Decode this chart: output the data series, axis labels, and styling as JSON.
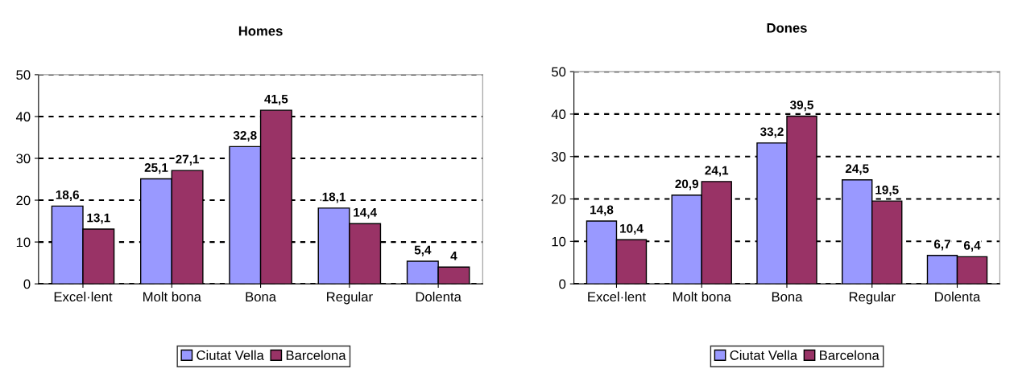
{
  "chart_data": [
    {
      "type": "bar",
      "title": "Homes",
      "categories": [
        "Excel·lent",
        "Molt bona",
        "Bona",
        "Regular",
        "Dolenta"
      ],
      "ylim": [
        0,
        50
      ],
      "yticks": [
        0,
        10,
        20,
        30,
        40,
        50
      ],
      "grid": "y",
      "legend": "bottom",
      "series": [
        {
          "name": "Ciutat Vella",
          "color": "#9999ff",
          "values": [
            18.6,
            25.1,
            32.8,
            18.1,
            5.4
          ],
          "value_labels": [
            "18,6",
            "25,1",
            "32,8",
            "18,1",
            "5,4"
          ]
        },
        {
          "name": "Barcelona",
          "color": "#993366",
          "values": [
            13.1,
            27.1,
            41.5,
            14.4,
            4
          ],
          "value_labels": [
            "13,1",
            "27,1",
            "41,5",
            "14,4",
            "4"
          ]
        }
      ]
    },
    {
      "type": "bar",
      "title": "Dones",
      "categories": [
        "Excel·lent",
        "Molt bona",
        "Bona",
        "Regular",
        "Dolenta"
      ],
      "ylim": [
        0,
        50
      ],
      "yticks": [
        0,
        10,
        20,
        30,
        40,
        50
      ],
      "grid": "y",
      "legend": "bottom",
      "series": [
        {
          "name": "Ciutat Vella",
          "color": "#9999ff",
          "values": [
            14.8,
            20.9,
            33.2,
            24.5,
            6.7
          ],
          "value_labels": [
            "14,8",
            "20,9",
            "33,2",
            "24,5",
            "6,7"
          ]
        },
        {
          "name": "Barcelona",
          "color": "#993366",
          "values": [
            10.4,
            24.1,
            39.5,
            19.5,
            6.4
          ],
          "value_labels": [
            "10,4",
            "24,1",
            "39,5",
            "19,5",
            "6,4"
          ]
        }
      ]
    }
  ]
}
